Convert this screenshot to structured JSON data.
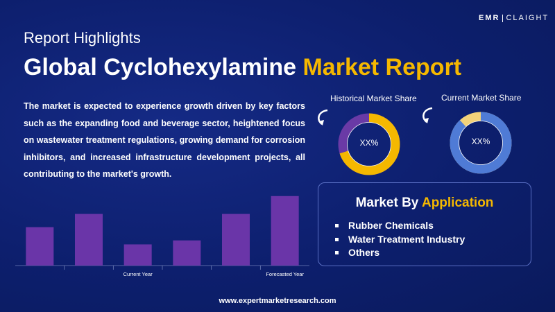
{
  "brand": {
    "logo_main": "EMR",
    "logo_tail": "CLAIGHT"
  },
  "header": {
    "subtitle": "Report Highlights",
    "title_main": "Global Cyclohexylamine",
    "title_highlight": "Market Report"
  },
  "description": "The market is expected to experience growth driven by key factors such as the expanding food and beverage sector, heightened focus on wastewater treatment regulations, growing demand for corrosion inhibitors, and increased infrastructure development projects, all contributing to the market's growth.",
  "shares": {
    "historical": {
      "label": "Historical Market Share",
      "value_text": "XX%",
      "fraction": 0.7,
      "main_color": "#f5b800",
      "accent_color": "#6a3aa6"
    },
    "current": {
      "label": "Current Market Share",
      "value_text": "XX%",
      "fraction": 0.88,
      "main_color": "#4f7bd6",
      "accent_color": "#f3d27a"
    }
  },
  "application": {
    "title_main": "Market By",
    "title_highlight": "Application",
    "items": [
      "Rubber Chemicals",
      "Water Treatment Industry",
      "Others"
    ]
  },
  "footer": {
    "url": "www.expertmarketresearch.com"
  },
  "chart_data": {
    "type": "bar",
    "categories": [
      "",
      "",
      "Current Year",
      "",
      "",
      "Forecasted Year"
    ],
    "values": [
      58,
      78,
      32,
      38,
      78,
      105
    ],
    "ylim": [
      0,
      110
    ],
    "bar_color": "#6a35a8",
    "grid": false
  }
}
